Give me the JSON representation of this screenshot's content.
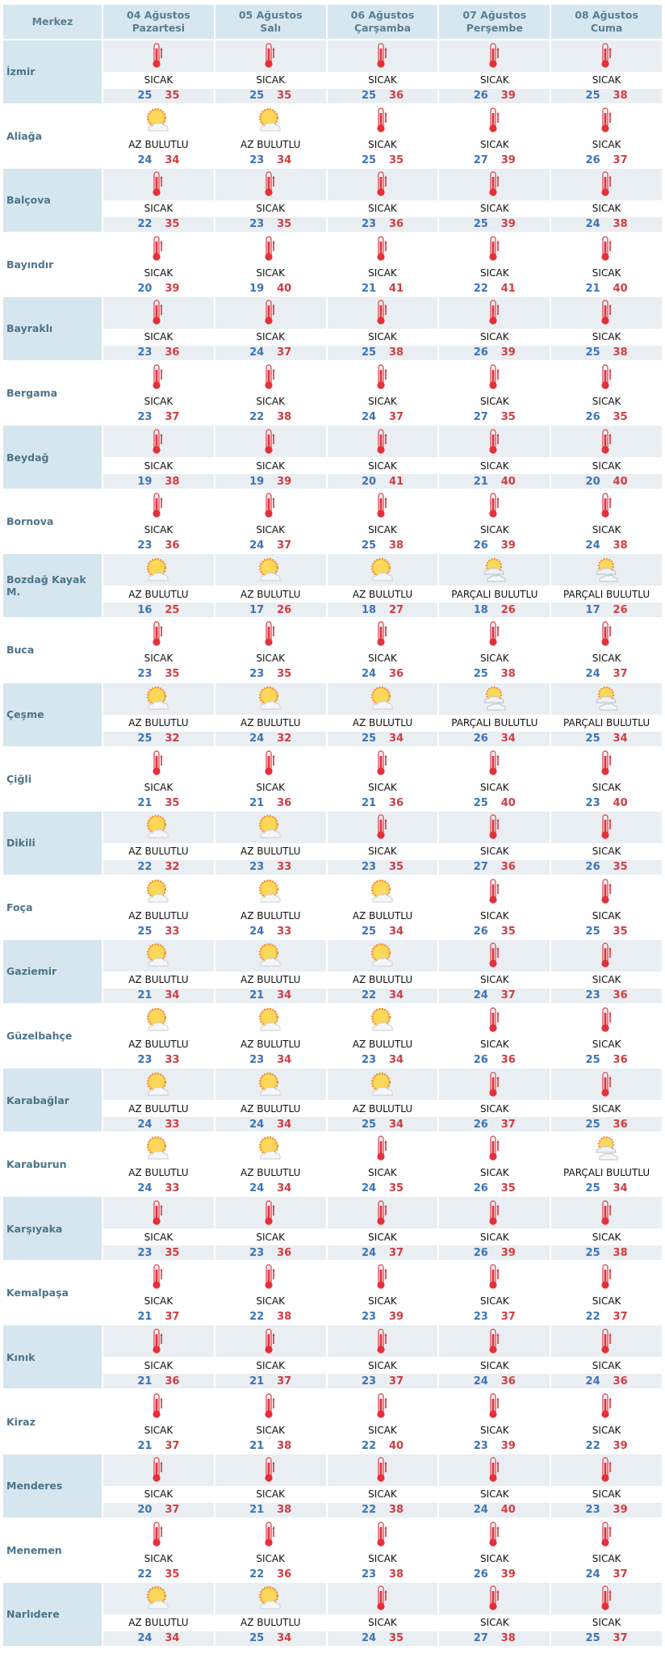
{
  "header": {
    "center_label": "Merkez",
    "days": [
      {
        "date": "04 Ağustos",
        "weekday": "Pazartesi"
      },
      {
        "date": "05 Ağustos",
        "weekday": "Salı"
      },
      {
        "date": "06 Ağustos",
        "weekday": "Çarşamba"
      },
      {
        "date": "07 Ağustos",
        "weekday": "Perşembe"
      },
      {
        "date": "08 Ağustos",
        "weekday": "Cuma"
      }
    ]
  },
  "icons": {
    "SICAK": "thermometer-icon",
    "AZ BULUTLU": "sun-cloud-icon",
    "PARÇALI BULUTLU": "partly-cloudy-icon"
  },
  "colors": {
    "min": "#3d74b5",
    "max": "#d23c40",
    "header_bg": "#d6e7f0",
    "cell_bg": "#e9eef2"
  },
  "rows": [
    {
      "name": "İzmir",
      "days": [
        {
          "condition": "SICAK",
          "min": 25,
          "max": 35
        },
        {
          "condition": "SICAK",
          "min": 25,
          "max": 35
        },
        {
          "condition": "SICAK",
          "min": 25,
          "max": 36
        },
        {
          "condition": "SICAK",
          "min": 26,
          "max": 39
        },
        {
          "condition": "SICAK",
          "min": 25,
          "max": 38
        }
      ]
    },
    {
      "name": "Aliağa",
      "days": [
        {
          "condition": "AZ BULUTLU",
          "min": 24,
          "max": 34
        },
        {
          "condition": "AZ BULUTLU",
          "min": 23,
          "max": 34
        },
        {
          "condition": "SICAK",
          "min": 25,
          "max": 35
        },
        {
          "condition": "SICAK",
          "min": 27,
          "max": 39
        },
        {
          "condition": "SICAK",
          "min": 26,
          "max": 37
        }
      ]
    },
    {
      "name": "Balçova",
      "days": [
        {
          "condition": "SICAK",
          "min": 22,
          "max": 35
        },
        {
          "condition": "SICAK",
          "min": 23,
          "max": 35
        },
        {
          "condition": "SICAK",
          "min": 23,
          "max": 36
        },
        {
          "condition": "SICAK",
          "min": 25,
          "max": 39
        },
        {
          "condition": "SICAK",
          "min": 24,
          "max": 38
        }
      ]
    },
    {
      "name": "Bayındır",
      "days": [
        {
          "condition": "SICAK",
          "min": 20,
          "max": 39
        },
        {
          "condition": "SICAK",
          "min": 19,
          "max": 40
        },
        {
          "condition": "SICAK",
          "min": 21,
          "max": 41
        },
        {
          "condition": "SICAK",
          "min": 22,
          "max": 41
        },
        {
          "condition": "SICAK",
          "min": 21,
          "max": 40
        }
      ]
    },
    {
      "name": "Bayraklı",
      "days": [
        {
          "condition": "SICAK",
          "min": 23,
          "max": 36
        },
        {
          "condition": "SICAK",
          "min": 24,
          "max": 37
        },
        {
          "condition": "SICAK",
          "min": 25,
          "max": 38
        },
        {
          "condition": "SICAK",
          "min": 26,
          "max": 39
        },
        {
          "condition": "SICAK",
          "min": 25,
          "max": 38
        }
      ]
    },
    {
      "name": "Bergama",
      "days": [
        {
          "condition": "SICAK",
          "min": 23,
          "max": 37
        },
        {
          "condition": "SICAK",
          "min": 22,
          "max": 38
        },
        {
          "condition": "SICAK",
          "min": 24,
          "max": 37
        },
        {
          "condition": "SICAK",
          "min": 27,
          "max": 35
        },
        {
          "condition": "SICAK",
          "min": 26,
          "max": 35
        }
      ]
    },
    {
      "name": "Beydağ",
      "days": [
        {
          "condition": "SICAK",
          "min": 19,
          "max": 38
        },
        {
          "condition": "SICAK",
          "min": 19,
          "max": 39
        },
        {
          "condition": "SICAK",
          "min": 20,
          "max": 41
        },
        {
          "condition": "SICAK",
          "min": 21,
          "max": 40
        },
        {
          "condition": "SICAK",
          "min": 20,
          "max": 40
        }
      ]
    },
    {
      "name": "Bornova",
      "days": [
        {
          "condition": "SICAK",
          "min": 23,
          "max": 36
        },
        {
          "condition": "SICAK",
          "min": 24,
          "max": 37
        },
        {
          "condition": "SICAK",
          "min": 25,
          "max": 38
        },
        {
          "condition": "SICAK",
          "min": 26,
          "max": 39
        },
        {
          "condition": "SICAK",
          "min": 24,
          "max": 38
        }
      ]
    },
    {
      "name": "Bozdağ Kayak M.",
      "days": [
        {
          "condition": "AZ BULUTLU",
          "min": 16,
          "max": 25
        },
        {
          "condition": "AZ BULUTLU",
          "min": 17,
          "max": 26
        },
        {
          "condition": "AZ BULUTLU",
          "min": 18,
          "max": 27
        },
        {
          "condition": "PARÇALI BULUTLU",
          "min": 18,
          "max": 26
        },
        {
          "condition": "PARÇALI BULUTLU",
          "min": 17,
          "max": 26
        }
      ]
    },
    {
      "name": "Buca",
      "days": [
        {
          "condition": "SICAK",
          "min": 23,
          "max": 35
        },
        {
          "condition": "SICAK",
          "min": 23,
          "max": 35
        },
        {
          "condition": "SICAK",
          "min": 24,
          "max": 36
        },
        {
          "condition": "SICAK",
          "min": 25,
          "max": 38
        },
        {
          "condition": "SICAK",
          "min": 24,
          "max": 37
        }
      ]
    },
    {
      "name": "Çeşme",
      "days": [
        {
          "condition": "AZ BULUTLU",
          "min": 25,
          "max": 32
        },
        {
          "condition": "AZ BULUTLU",
          "min": 24,
          "max": 32
        },
        {
          "condition": "AZ BULUTLU",
          "min": 25,
          "max": 34
        },
        {
          "condition": "PARÇALI BULUTLU",
          "min": 26,
          "max": 34
        },
        {
          "condition": "PARÇALI BULUTLU",
          "min": 25,
          "max": 34
        }
      ]
    },
    {
      "name": "Çiğli",
      "days": [
        {
          "condition": "SICAK",
          "min": 21,
          "max": 35
        },
        {
          "condition": "SICAK",
          "min": 21,
          "max": 36
        },
        {
          "condition": "SICAK",
          "min": 21,
          "max": 36
        },
        {
          "condition": "SICAK",
          "min": 25,
          "max": 40
        },
        {
          "condition": "SICAK",
          "min": 23,
          "max": 40
        }
      ]
    },
    {
      "name": "Dikili",
      "days": [
        {
          "condition": "AZ BULUTLU",
          "min": 22,
          "max": 32
        },
        {
          "condition": "AZ BULUTLU",
          "min": 23,
          "max": 33
        },
        {
          "condition": "SICAK",
          "min": 23,
          "max": 35
        },
        {
          "condition": "SICAK",
          "min": 27,
          "max": 36
        },
        {
          "condition": "SICAK",
          "min": 26,
          "max": 35
        }
      ]
    },
    {
      "name": "Foça",
      "days": [
        {
          "condition": "AZ BULUTLU",
          "min": 25,
          "max": 33
        },
        {
          "condition": "AZ BULUTLU",
          "min": 24,
          "max": 33
        },
        {
          "condition": "AZ BULUTLU",
          "min": 25,
          "max": 34
        },
        {
          "condition": "SICAK",
          "min": 26,
          "max": 35
        },
        {
          "condition": "SICAK",
          "min": 25,
          "max": 35
        }
      ]
    },
    {
      "name": "Gaziemir",
      "days": [
        {
          "condition": "AZ BULUTLU",
          "min": 21,
          "max": 34
        },
        {
          "condition": "AZ BULUTLU",
          "min": 21,
          "max": 34
        },
        {
          "condition": "AZ BULUTLU",
          "min": 22,
          "max": 34
        },
        {
          "condition": "SICAK",
          "min": 24,
          "max": 37
        },
        {
          "condition": "SICAK",
          "min": 23,
          "max": 36
        }
      ]
    },
    {
      "name": "Güzelbahçe",
      "days": [
        {
          "condition": "AZ BULUTLU",
          "min": 23,
          "max": 33
        },
        {
          "condition": "AZ BULUTLU",
          "min": 23,
          "max": 34
        },
        {
          "condition": "AZ BULUTLU",
          "min": 23,
          "max": 34
        },
        {
          "condition": "SICAK",
          "min": 26,
          "max": 36
        },
        {
          "condition": "SICAK",
          "min": 25,
          "max": 36
        }
      ]
    },
    {
      "name": "Karabağlar",
      "days": [
        {
          "condition": "AZ BULUTLU",
          "min": 24,
          "max": 33
        },
        {
          "condition": "AZ BULUTLU",
          "min": 24,
          "max": 34
        },
        {
          "condition": "AZ BULUTLU",
          "min": 25,
          "max": 34
        },
        {
          "condition": "SICAK",
          "min": 26,
          "max": 37
        },
        {
          "condition": "SICAK",
          "min": 25,
          "max": 36
        }
      ]
    },
    {
      "name": "Karaburun",
      "days": [
        {
          "condition": "AZ BULUTLU",
          "min": 24,
          "max": 33
        },
        {
          "condition": "AZ BULUTLU",
          "min": 24,
          "max": 34
        },
        {
          "condition": "SICAK",
          "min": 24,
          "max": 35
        },
        {
          "condition": "SICAK",
          "min": 26,
          "max": 35
        },
        {
          "condition": "PARÇALI BULUTLU",
          "min": 25,
          "max": 34
        }
      ]
    },
    {
      "name": "Karşıyaka",
      "days": [
        {
          "condition": "SICAK",
          "min": 23,
          "max": 35
        },
        {
          "condition": "SICAK",
          "min": 23,
          "max": 36
        },
        {
          "condition": "SICAK",
          "min": 24,
          "max": 37
        },
        {
          "condition": "SICAK",
          "min": 26,
          "max": 39
        },
        {
          "condition": "SICAK",
          "min": 25,
          "max": 38
        }
      ]
    },
    {
      "name": "Kemalpaşa",
      "days": [
        {
          "condition": "SICAK",
          "min": 21,
          "max": 37
        },
        {
          "condition": "SICAK",
          "min": 22,
          "max": 38
        },
        {
          "condition": "SICAK",
          "min": 23,
          "max": 39
        },
        {
          "condition": "SICAK",
          "min": 23,
          "max": 37
        },
        {
          "condition": "SICAK",
          "min": 22,
          "max": 37
        }
      ]
    },
    {
      "name": "Kınık",
      "days": [
        {
          "condition": "SICAK",
          "min": 21,
          "max": 36
        },
        {
          "condition": "SICAK",
          "min": 21,
          "max": 37
        },
        {
          "condition": "SICAK",
          "min": 23,
          "max": 37
        },
        {
          "condition": "SICAK",
          "min": 24,
          "max": 36
        },
        {
          "condition": "SICAK",
          "min": 24,
          "max": 36
        }
      ]
    },
    {
      "name": "Kiraz",
      "days": [
        {
          "condition": "SICAK",
          "min": 21,
          "max": 37
        },
        {
          "condition": "SICAK",
          "min": 21,
          "max": 38
        },
        {
          "condition": "SICAK",
          "min": 22,
          "max": 40
        },
        {
          "condition": "SICAK",
          "min": 23,
          "max": 39
        },
        {
          "condition": "SICAK",
          "min": 22,
          "max": 39
        }
      ]
    },
    {
      "name": "Menderes",
      "days": [
        {
          "condition": "SICAK",
          "min": 20,
          "max": 37
        },
        {
          "condition": "SICAK",
          "min": 21,
          "max": 38
        },
        {
          "condition": "SICAK",
          "min": 22,
          "max": 38
        },
        {
          "condition": "SICAK",
          "min": 24,
          "max": 40
        },
        {
          "condition": "SICAK",
          "min": 23,
          "max": 39
        }
      ]
    },
    {
      "name": "Menemen",
      "days": [
        {
          "condition": "SICAK",
          "min": 22,
          "max": 35
        },
        {
          "condition": "SICAK",
          "min": 22,
          "max": 36
        },
        {
          "condition": "SICAK",
          "min": 23,
          "max": 38
        },
        {
          "condition": "SICAK",
          "min": 26,
          "max": 39
        },
        {
          "condition": "SICAK",
          "min": 24,
          "max": 37
        }
      ]
    },
    {
      "name": "Narlıdere",
      "days": [
        {
          "condition": "AZ BULUTLU",
          "min": 24,
          "max": 34
        },
        {
          "condition": "AZ BULUTLU",
          "min": 25,
          "max": 34
        },
        {
          "condition": "SICAK",
          "min": 24,
          "max": 35
        },
        {
          "condition": "SICAK",
          "min": 27,
          "max": 38
        },
        {
          "condition": "SICAK",
          "min": 25,
          "max": 37
        }
      ]
    }
  ]
}
